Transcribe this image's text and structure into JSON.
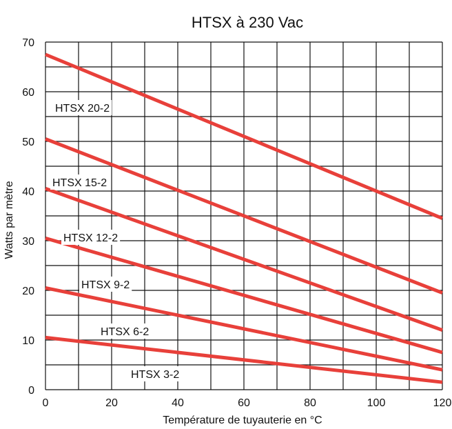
{
  "chart_data": {
    "type": "line",
    "title": "HTSX à 230 Vac",
    "xlabel": "Température de tuyauterie en °C",
    "ylabel": "Watts par mètre",
    "xlim": [
      0,
      120
    ],
    "ylim": [
      0,
      70
    ],
    "xticks": [
      0,
      20,
      40,
      60,
      80,
      100,
      120
    ],
    "yticks": [
      0,
      10,
      20,
      30,
      40,
      50,
      60,
      70
    ],
    "grid": true,
    "line_color": "#e8403a",
    "series": [
      {
        "name": "HTSX 20-2",
        "x": [
          0,
          120
        ],
        "y": [
          67.5,
          34.5
        ]
      },
      {
        "name": "HTSX 15-2",
        "x": [
          0,
          120
        ],
        "y": [
          50.5,
          19.5
        ]
      },
      {
        "name": "HTSX 12-2",
        "x": [
          0,
          120
        ],
        "y": [
          40.5,
          12
        ]
      },
      {
        "name": "HTSX 9-2",
        "x": [
          0,
          120
        ],
        "y": [
          30.5,
          7.5
        ]
      },
      {
        "name": "HTSX 6-2",
        "x": [
          0,
          120
        ],
        "y": [
          20.5,
          4
        ]
      },
      {
        "name": "HTSX 3-2",
        "x": [
          0,
          120
        ],
        "y": [
          10.5,
          1.5
        ]
      }
    ]
  }
}
